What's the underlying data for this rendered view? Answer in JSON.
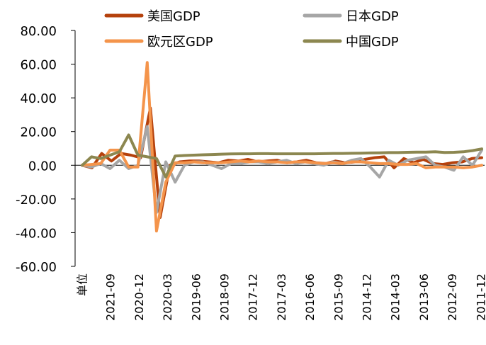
{
  "chart_data": {
    "type": "line",
    "title": "",
    "xlabel": "",
    "ylabel": "",
    "ylim": [
      -60,
      80
    ],
    "yticks": [
      "80.00",
      "60.00",
      "40.00",
      "20.00",
      "0.00",
      "-20.00",
      "-40.00",
      "-60.00"
    ],
    "x_tick_labels": [
      "单位",
      "2021-09",
      "2020-12",
      "2020-03",
      "2019-06",
      "2018-09",
      "2017-12",
      "2017-03",
      "2016-06",
      "2015-09",
      "2014-12",
      "2014-03",
      "2013-06",
      "2012-09",
      "2011-12"
    ],
    "legend_position": "top",
    "grid": false,
    "series": [
      {
        "name": "美国GDP",
        "color": "#b5410c",
        "values": [
          0,
          -1.5,
          7,
          2.5,
          7,
          6,
          4.5,
          34,
          -31,
          0,
          2,
          2.5,
          2.5,
          2,
          1.5,
          3,
          2.5,
          3.5,
          2,
          2.5,
          3,
          1.5,
          2,
          3,
          1.5,
          1,
          2.5,
          1.5,
          2,
          3.5,
          4.5,
          5,
          -1.5,
          4,
          1.5,
          3.5,
          1,
          0.5,
          1.5,
          2,
          4,
          4.5
        ]
      },
      {
        "name": "日本GDP",
        "color": "#a6a6a6",
        "values": [
          0,
          -1,
          1,
          -2,
          3,
          -2,
          0,
          23,
          -28,
          2,
          -10,
          0,
          2,
          2,
          0,
          -2,
          1,
          1,
          2,
          2,
          1,
          2,
          3,
          1,
          2,
          1,
          0,
          2,
          1,
          3,
          4,
          -1,
          -7,
          3,
          0,
          3,
          4,
          5,
          0,
          -1,
          -3,
          5,
          0,
          9
        ]
      },
      {
        "name": "欧元区GDP",
        "color": "#f4944b",
        "values": [
          0,
          0.5,
          1,
          9,
          9,
          -1,
          -1,
          61,
          -39,
          -10,
          1.5,
          1.5,
          2,
          1.5,
          1.5,
          1.5,
          2,
          2.5,
          2,
          2.5,
          2,
          2,
          1.5,
          2,
          2,
          1.5,
          1,
          1.5,
          1,
          2,
          2,
          1.5,
          1,
          1,
          0.5,
          0.5,
          1,
          -1.5,
          -1,
          -1,
          -1,
          -1.5,
          -1,
          0
        ]
      },
      {
        "name": "中国GDP",
        "color": "#8c8750",
        "values": [
          0,
          5,
          4,
          6,
          8,
          18,
          6,
          5,
          4,
          -7,
          5.5,
          5.8,
          6,
          6.2,
          6.4,
          6.6,
          6.7,
          6.8,
          6.8,
          6.9,
          6.9,
          6.8,
          6.8,
          6.8,
          6.8,
          6.8,
          6.9,
          7,
          7,
          7.1,
          7.2,
          7.3,
          7.4,
          7.5,
          7.5,
          7.7,
          7.8,
          7.8,
          8,
          7.6,
          7.7,
          8,
          8.7,
          9.7
        ]
      }
    ]
  }
}
